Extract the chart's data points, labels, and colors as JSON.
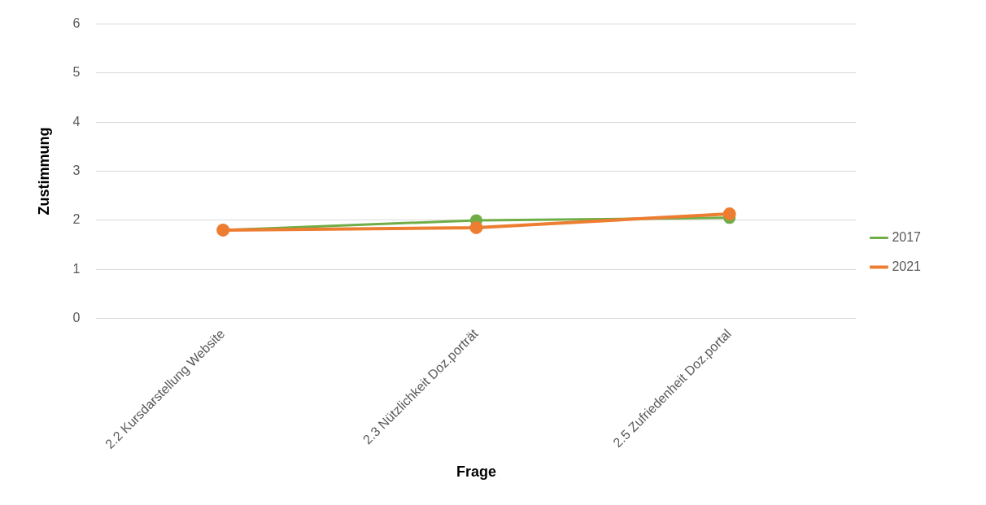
{
  "chart_data": {
    "type": "line",
    "xlabel": "Frage",
    "ylabel": "Zustimmung",
    "categories": [
      "2.2 Kursdarstellung Website",
      "2.3 Nützlichkeit Doz.porträt",
      "2.5 Zufriedenheit Doz.portal"
    ],
    "series": [
      {
        "name": "2017",
        "color": "#70ad47",
        "values": [
          1.8,
          2.0,
          2.05
        ]
      },
      {
        "name": "2021",
        "color": "#ed7d31",
        "values": [
          1.8,
          1.85,
          2.13
        ]
      }
    ],
    "ylim": [
      0,
      6
    ],
    "yticks": [
      0,
      1,
      2,
      3,
      4,
      5,
      6
    ],
    "grid": "y",
    "legend": "right",
    "marker": "circle",
    "line_style": "solid"
  }
}
